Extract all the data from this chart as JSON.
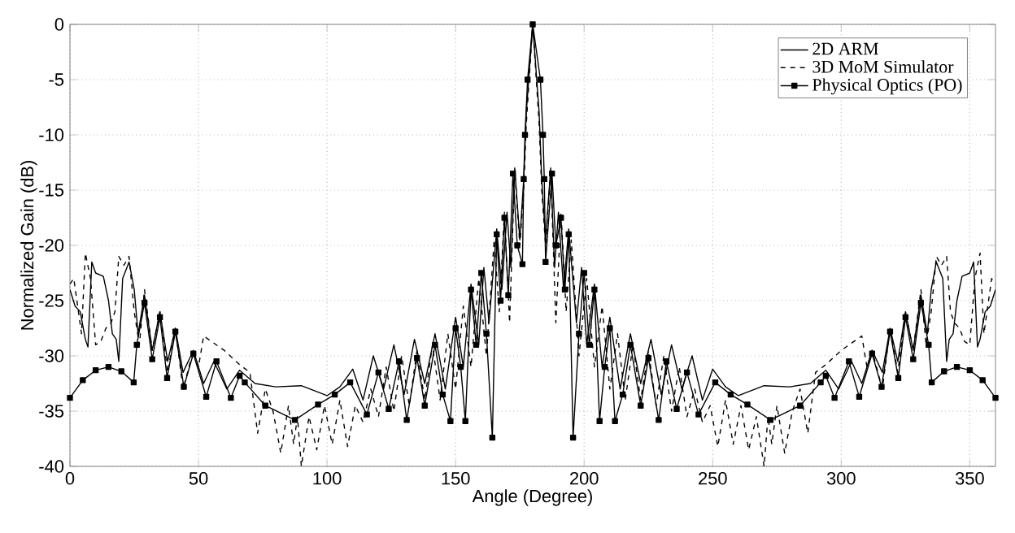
{
  "chart_data": {
    "type": "line",
    "xlabel": "Angle (Degree)",
    "ylabel": "Normalized Gain (dB)",
    "xlim": [
      0,
      360
    ],
    "ylim": [
      -40,
      0
    ],
    "xticks": [
      0,
      50,
      100,
      150,
      200,
      250,
      300,
      350
    ],
    "yticks": [
      -40,
      -35,
      -30,
      -25,
      -20,
      -15,
      -10,
      -5,
      0
    ],
    "grid": true,
    "legend": "top right",
    "series": [
      {
        "name": "2D ARM",
        "color": "#000000",
        "line_style": "solid",
        "marker": "none",
        "x": [
          0,
          2,
          4,
          6,
          7,
          8.5,
          10,
          13,
          15,
          16.5,
          18,
          19,
          20.5,
          23,
          25,
          26.5,
          29,
          32,
          35,
          38,
          41,
          44,
          48,
          52,
          56,
          61,
          66,
          72,
          80,
          90,
          100,
          105,
          110,
          114,
          118,
          122,
          126,
          130,
          134,
          138,
          142,
          146,
          150,
          153,
          156,
          159,
          161,
          163,
          166,
          168,
          170,
          171.5,
          173,
          175,
          176.5,
          177.5,
          180,
          182.5,
          183.5,
          185,
          187,
          188.5,
          190,
          192,
          194,
          197,
          199,
          201,
          204,
          207,
          210,
          214,
          218,
          222,
          226,
          230,
          234,
          238,
          242,
          246,
          250,
          255,
          260,
          270,
          280,
          288,
          294,
          299,
          304,
          308,
          312,
          316,
          319,
          322,
          325,
          328,
          331,
          333.5,
          335,
          337,
          339.5,
          341,
          342,
          343.5,
          345,
          347,
          350,
          351.5,
          353,
          354,
          356,
          358,
          360
        ],
        "values": [
          -24,
          -25.5,
          -26,
          -28.5,
          -29.2,
          -21.5,
          -22.5,
          -22.8,
          -25,
          -28,
          -28.5,
          -30.5,
          -23,
          -21.5,
          -24,
          -28,
          -24.5,
          -29.5,
          -26,
          -30.5,
          -27.5,
          -31.5,
          -29.5,
          -32.5,
          -30.5,
          -33,
          -31.3,
          -32.5,
          -32.8,
          -32.7,
          -33.6,
          -32.8,
          -31.2,
          -34,
          -30,
          -33,
          -29,
          -33.5,
          -28.5,
          -32.5,
          -28,
          -33,
          -26.5,
          -31,
          -23.5,
          -29,
          -22,
          -27,
          -18.5,
          -24,
          -17,
          -22,
          -13,
          -19.5,
          -14,
          -8,
          0,
          -8,
          -14,
          -19.5,
          -13,
          -22,
          -17,
          -24,
          -18.5,
          -27,
          -22,
          -29,
          -23.5,
          -31,
          -26.5,
          -33,
          -28,
          -32.5,
          -28.5,
          -33.5,
          -29,
          -33,
          -30,
          -34,
          -31.2,
          -32.8,
          -33.6,
          -32.7,
          -32.8,
          -32.5,
          -31.3,
          -33,
          -30.5,
          -32.5,
          -29.5,
          -31.5,
          -27.5,
          -30.5,
          -26,
          -29.5,
          -24.5,
          -28,
          -24,
          -21.5,
          -23,
          -30.5,
          -28.5,
          -28,
          -25,
          -22.8,
          -22.5,
          -21.5,
          -29.2,
          -28.5,
          -26,
          -25.5,
          -24
        ]
      },
      {
        "name": "3D MoM Simulator",
        "color": "#000000",
        "line_style": "dashed",
        "marker": "none",
        "x": [
          0,
          1.5,
          3,
          4.5,
          6,
          8,
          10,
          12,
          14,
          16,
          17.5,
          19,
          21,
          23,
          25,
          27,
          29,
          32,
          35,
          38,
          41,
          44,
          48,
          50,
          52,
          60,
          66,
          70,
          73,
          76,
          79,
          82,
          85,
          87,
          88.5,
          90,
          93,
          96,
          99,
          102,
          105,
          108,
          111,
          114,
          117,
          120,
          123,
          126,
          129,
          132,
          135,
          138,
          141,
          144,
          147,
          150,
          153,
          156,
          159,
          162,
          165,
          167,
          169,
          171,
          173,
          175,
          176.5,
          177.5,
          180,
          182.5,
          183.5,
          185,
          187,
          189,
          191,
          193,
          195,
          198,
          201,
          204,
          207,
          210,
          213,
          216,
          219,
          222,
          225,
          228,
          231,
          234,
          237,
          240,
          243,
          246,
          249,
          252,
          255,
          258,
          261,
          264,
          267,
          270,
          271.5,
          273,
          275,
          278,
          281,
          284,
          287,
          290,
          294,
          300,
          308,
          310,
          312,
          316,
          319,
          322,
          325,
          328,
          331,
          333,
          335,
          337,
          339,
          341,
          342.5,
          344,
          346,
          348,
          350,
          352,
          354,
          355.5,
          357,
          358.5,
          360
        ],
        "values": [
          -23.5,
          -23,
          -25.5,
          -28,
          -20.7,
          -23,
          -29,
          -28.7,
          -27.5,
          -27,
          -26,
          -21,
          -21.8,
          -21,
          -26,
          -29,
          -24,
          -29.5,
          -26,
          -31.5,
          -27.5,
          -33,
          -29.5,
          -31,
          -28.2,
          -29.5,
          -30.8,
          -31.5,
          -37,
          -33,
          -35,
          -38.8,
          -34.5,
          -38,
          -35.5,
          -40,
          -35.5,
          -38.5,
          -34.5,
          -38,
          -34,
          -38.2,
          -34.5,
          -36,
          -33,
          -35.5,
          -31,
          -35,
          -30,
          -34.5,
          -29.5,
          -34,
          -29,
          -34,
          -28,
          -33,
          -25.5,
          -31,
          -23,
          -30,
          -19.5,
          -26,
          -17,
          -27,
          -13.2,
          -20,
          -15,
          -9,
          0,
          -9,
          -15,
          -20,
          -13.2,
          -27,
          -17,
          -26,
          -19.5,
          -30,
          -23,
          -31,
          -25.5,
          -33,
          -28,
          -34,
          -29,
          -34,
          -29.5,
          -34.5,
          -30,
          -35,
          -31,
          -35.5,
          -33,
          -36,
          -34.5,
          -38.2,
          -34,
          -38,
          -34.5,
          -38.5,
          -35.5,
          -40,
          -35.5,
          -38,
          -34.5,
          -38.8,
          -35,
          -33,
          -37,
          -31.5,
          -30.8,
          -29.5,
          -28.2,
          -31,
          -29.5,
          -33,
          -27.5,
          -31.5,
          -26,
          -29.5,
          -24,
          -29,
          -26,
          -21,
          -21.8,
          -21,
          -26,
          -27,
          -27.5,
          -28.7,
          -29,
          -23,
          -20.7,
          -28,
          -25.5,
          -23,
          -23.5
        ]
      },
      {
        "name": "Physical Optics (PO)",
        "color": "#000000",
        "line_style": "solid",
        "marker": "square",
        "x": [
          0,
          5,
          10,
          15,
          20,
          24.8,
          26,
          29,
          32,
          35,
          37.8,
          41,
          44.3,
          48,
          53,
          57,
          62.6,
          66,
          68,
          76,
          87.5,
          96.5,
          103,
          109,
          115.5,
          120,
          124,
          128,
          131,
          135,
          138,
          142,
          145,
          148,
          150,
          152,
          153.8,
          156,
          158,
          160,
          162,
          164.3,
          166,
          167.5,
          169,
          170.5,
          172.3,
          174,
          176,
          176.5,
          177,
          178,
          180,
          183,
          184,
          184.5,
          185,
          187.5,
          189,
          191,
          192.5,
          194,
          195.7,
          198,
          200,
          202,
          204,
          206,
          208,
          210,
          212,
          215,
          218,
          222,
          225,
          229,
          232,
          236,
          240,
          244.5,
          251,
          257,
          263.5,
          272.5,
          284,
          292,
          294,
          297.4,
          303,
          307,
          312,
          315.7,
          319,
          322.2,
          325,
          328,
          331,
          334,
          335.2,
          340,
          345,
          350,
          355,
          360
        ],
        "values": [
          -33.8,
          -32.2,
          -31.3,
          -31,
          -31.4,
          -32.4,
          -29,
          -25.2,
          -30.3,
          -26.5,
          -32,
          -27.8,
          -32.8,
          -29.8,
          -33.7,
          -30.5,
          -33.8,
          -31.8,
          -32.4,
          -34.5,
          -35.8,
          -34.4,
          -33.5,
          -32.4,
          -35.3,
          -31.5,
          -34.8,
          -30.5,
          -35.8,
          -30.2,
          -34.5,
          -29,
          -33.5,
          -35.9,
          -27.5,
          -31,
          -35.9,
          -24,
          -29,
          -22.5,
          -28,
          -37.4,
          -19,
          -25,
          -17.5,
          -24.5,
          -13.5,
          -20,
          -21.7,
          -14,
          -10,
          -5,
          0,
          -5,
          -10,
          -14,
          -21.5,
          -13.5,
          -20,
          -17.5,
          -24,
          -19,
          -37.4,
          -28,
          -22.5,
          -29,
          -24,
          -35.9,
          -31,
          -27.5,
          -35.9,
          -33.5,
          -29,
          -34.5,
          -30.2,
          -35.8,
          -30.5,
          -34.8,
          -31.5,
          -35.3,
          -32.4,
          -33.5,
          -34.4,
          -35.8,
          -34.5,
          -32.4,
          -31.8,
          -33.8,
          -30.5,
          -33.7,
          -29.8,
          -32.8,
          -27.8,
          -32,
          -26.5,
          -30.3,
          -25.2,
          -29,
          -32.4,
          -31.4,
          -31,
          -31.3,
          -32.2,
          -33.8
        ]
      }
    ]
  }
}
